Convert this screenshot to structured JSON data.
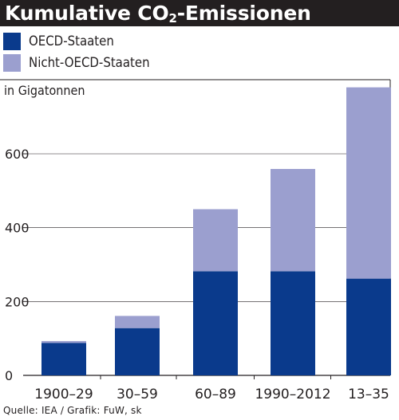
{
  "title": {
    "prefix": "Kumulative CO",
    "subscript": "2",
    "suffix": "-Emissionen"
  },
  "legend": [
    {
      "label": "OECD-Staaten",
      "color": "#0a3a8c"
    },
    {
      "label": "Nicht-OECD-Staaten",
      "color": "#9b9fcf"
    }
  ],
  "unit_label": "in Gigatonnen",
  "source": "Quelle: IEA / Grafik: FuW, sk",
  "colors": {
    "title_bg": "#231f20",
    "text": "#231f20",
    "grid": "#231f20",
    "frame": "#231f20"
  },
  "chart_data": {
    "type": "bar",
    "stacked": true,
    "categories": [
      "1900–29",
      "30–59",
      "60–89",
      "1990–2012",
      "13–35"
    ],
    "series": [
      {
        "name": "OECD-Staaten",
        "values": [
          88,
          128,
          282,
          282,
          262
        ],
        "color": "#0a3a8c"
      },
      {
        "name": "Nicht-OECD-Staaten",
        "values": [
          5,
          33,
          168,
          277,
          518
        ],
        "color": "#9b9fcf"
      }
    ],
    "ylim": [
      0,
      780
    ],
    "yticks": [
      0,
      200,
      400,
      600
    ],
    "grid": true,
    "ylabel": "in Gigatonnen",
    "xlabel": ""
  }
}
